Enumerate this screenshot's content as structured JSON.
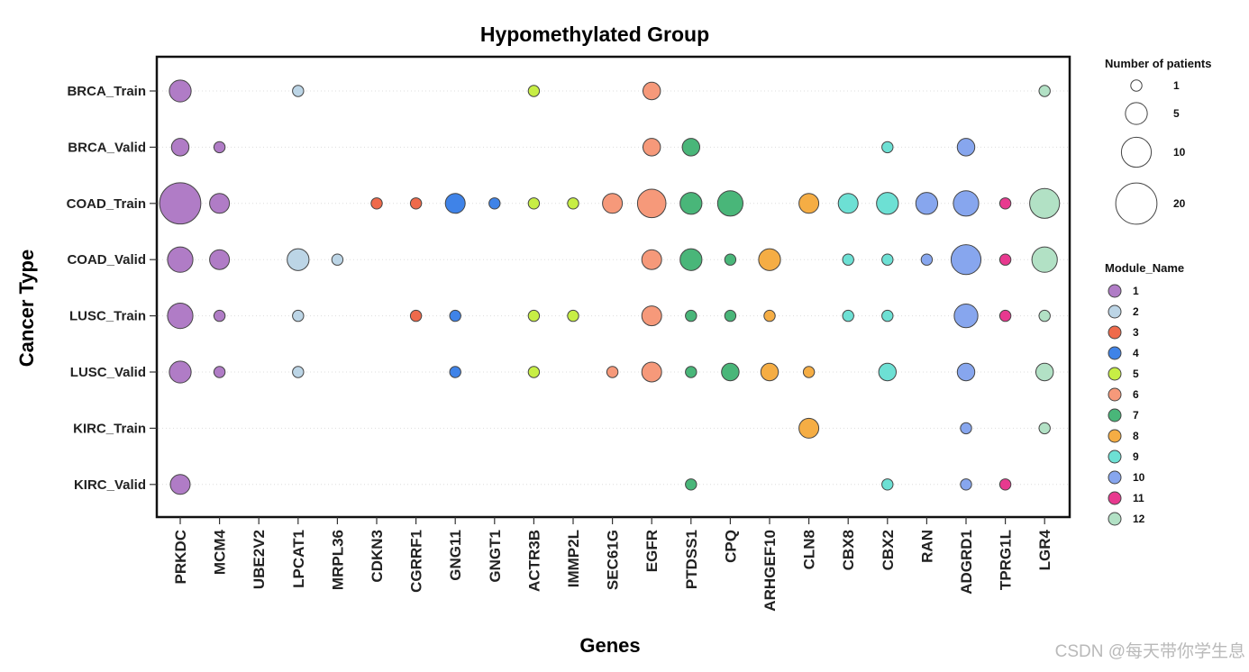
{
  "chart_data": {
    "type": "scatter",
    "title": "Hypomethylated Group",
    "xlabel": "Genes",
    "ylabel": "Cancer Type",
    "genes": [
      "PRKDC",
      "MCM4",
      "UBE2V2",
      "LPCAT1",
      "MRPL36",
      "CDKN3",
      "CGRRF1",
      "GNG11",
      "GNGT1",
      "ACTR3B",
      "IMMP2L",
      "SEC61G",
      "EGFR",
      "PTDSS1",
      "CPQ",
      "ARHGEF10",
      "CLN8",
      "CBX8",
      "CBX2",
      "RAN",
      "ADGRD1",
      "TPRG1L",
      "LGR4"
    ],
    "cancer_types": [
      "BRCA_Train",
      "BRCA_Valid",
      "COAD_Train",
      "COAD_Valid",
      "LUSC_Train",
      "LUSC_Valid",
      "KIRC_Train",
      "KIRC_Valid"
    ],
    "gene_module": {
      "PRKDC": 1,
      "MCM4": 1,
      "UBE2V2": 1,
      "LPCAT1": 2,
      "MRPL36": 2,
      "CDKN3": 3,
      "CGRRF1": 3,
      "GNG11": 4,
      "GNGT1": 4,
      "ACTR3B": 5,
      "IMMP2L": 5,
      "SEC61G": 6,
      "EGFR": 6,
      "PTDSS1": 7,
      "CPQ": 7,
      "ARHGEF10": 8,
      "CLN8": 8,
      "CBX8": 9,
      "CBX2": 9,
      "RAN": 10,
      "ADGRD1": 10,
      "TPRG1L": 11,
      "LGR4": 12
    },
    "points": [
      {
        "cancer": "BRCA_Train",
        "gene": "PRKDC",
        "patients": 5
      },
      {
        "cancer": "BRCA_Train",
        "gene": "LPCAT1",
        "patients": 1
      },
      {
        "cancer": "BRCA_Train",
        "gene": "ACTR3B",
        "patients": 1
      },
      {
        "cancer": "BRCA_Train",
        "gene": "EGFR",
        "patients": 3
      },
      {
        "cancer": "BRCA_Train",
        "gene": "LGR4",
        "patients": 1
      },
      {
        "cancer": "BRCA_Valid",
        "gene": "PRKDC",
        "patients": 3
      },
      {
        "cancer": "BRCA_Valid",
        "gene": "MCM4",
        "patients": 1
      },
      {
        "cancer": "BRCA_Valid",
        "gene": "EGFR",
        "patients": 3
      },
      {
        "cancer": "BRCA_Valid",
        "gene": "PTDSS1",
        "patients": 3
      },
      {
        "cancer": "BRCA_Valid",
        "gene": "CBX2",
        "patients": 1
      },
      {
        "cancer": "BRCA_Valid",
        "gene": "ADGRD1",
        "patients": 3
      },
      {
        "cancer": "COAD_Train",
        "gene": "PRKDC",
        "patients": 20
      },
      {
        "cancer": "COAD_Train",
        "gene": "MCM4",
        "patients": 4
      },
      {
        "cancer": "COAD_Train",
        "gene": "CDKN3",
        "patients": 1
      },
      {
        "cancer": "COAD_Train",
        "gene": "CGRRF1",
        "patients": 1
      },
      {
        "cancer": "COAD_Train",
        "gene": "GNG11",
        "patients": 4
      },
      {
        "cancer": "COAD_Train",
        "gene": "GNGT1",
        "patients": 1
      },
      {
        "cancer": "COAD_Train",
        "gene": "ACTR3B",
        "patients": 1
      },
      {
        "cancer": "COAD_Train",
        "gene": "IMMP2L",
        "patients": 1
      },
      {
        "cancer": "COAD_Train",
        "gene": "SEC61G",
        "patients": 4
      },
      {
        "cancer": "COAD_Train",
        "gene": "EGFR",
        "patients": 9
      },
      {
        "cancer": "COAD_Train",
        "gene": "PTDSS1",
        "patients": 5
      },
      {
        "cancer": "COAD_Train",
        "gene": "CPQ",
        "patients": 7
      },
      {
        "cancer": "COAD_Train",
        "gene": "CLN8",
        "patients": 4
      },
      {
        "cancer": "COAD_Train",
        "gene": "CBX8",
        "patients": 4
      },
      {
        "cancer": "COAD_Train",
        "gene": "CBX2",
        "patients": 5
      },
      {
        "cancer": "COAD_Train",
        "gene": "RAN",
        "patients": 5
      },
      {
        "cancer": "COAD_Train",
        "gene": "ADGRD1",
        "patients": 7
      },
      {
        "cancer": "COAD_Train",
        "gene": "TPRG1L",
        "patients": 1
      },
      {
        "cancer": "COAD_Train",
        "gene": "LGR4",
        "patients": 10
      },
      {
        "cancer": "COAD_Valid",
        "gene": "PRKDC",
        "patients": 7
      },
      {
        "cancer": "COAD_Valid",
        "gene": "MCM4",
        "patients": 4
      },
      {
        "cancer": "COAD_Valid",
        "gene": "LPCAT1",
        "patients": 5
      },
      {
        "cancer": "COAD_Valid",
        "gene": "MRPL36",
        "patients": 1
      },
      {
        "cancer": "COAD_Valid",
        "gene": "EGFR",
        "patients": 4
      },
      {
        "cancer": "COAD_Valid",
        "gene": "PTDSS1",
        "patients": 5
      },
      {
        "cancer": "COAD_Valid",
        "gene": "CPQ",
        "patients": 1
      },
      {
        "cancer": "COAD_Valid",
        "gene": "ARHGEF10",
        "patients": 5
      },
      {
        "cancer": "COAD_Valid",
        "gene": "CBX8",
        "patients": 1
      },
      {
        "cancer": "COAD_Valid",
        "gene": "CBX2",
        "patients": 1
      },
      {
        "cancer": "COAD_Valid",
        "gene": "RAN",
        "patients": 1
      },
      {
        "cancer": "COAD_Valid",
        "gene": "ADGRD1",
        "patients": 10
      },
      {
        "cancer": "COAD_Valid",
        "gene": "TPRG1L",
        "patients": 1
      },
      {
        "cancer": "COAD_Valid",
        "gene": "LGR4",
        "patients": 7
      },
      {
        "cancer": "LUSC_Train",
        "gene": "PRKDC",
        "patients": 7
      },
      {
        "cancer": "LUSC_Train",
        "gene": "MCM4",
        "patients": 1
      },
      {
        "cancer": "LUSC_Train",
        "gene": "LPCAT1",
        "patients": 1
      },
      {
        "cancer": "LUSC_Train",
        "gene": "CGRRF1",
        "patients": 1
      },
      {
        "cancer": "LUSC_Train",
        "gene": "GNG11",
        "patients": 1
      },
      {
        "cancer": "LUSC_Train",
        "gene": "ACTR3B",
        "patients": 1
      },
      {
        "cancer": "LUSC_Train",
        "gene": "IMMP2L",
        "patients": 1
      },
      {
        "cancer": "LUSC_Train",
        "gene": "EGFR",
        "patients": 4
      },
      {
        "cancer": "LUSC_Train",
        "gene": "PTDSS1",
        "patients": 1
      },
      {
        "cancer": "LUSC_Train",
        "gene": "CPQ",
        "patients": 1
      },
      {
        "cancer": "LUSC_Train",
        "gene": "ARHGEF10",
        "patients": 1
      },
      {
        "cancer": "LUSC_Train",
        "gene": "CBX8",
        "patients": 1
      },
      {
        "cancer": "LUSC_Train",
        "gene": "CBX2",
        "patients": 1
      },
      {
        "cancer": "LUSC_Train",
        "gene": "ADGRD1",
        "patients": 6
      },
      {
        "cancer": "LUSC_Train",
        "gene": "TPRG1L",
        "patients": 1
      },
      {
        "cancer": "LUSC_Train",
        "gene": "LGR4",
        "patients": 1
      },
      {
        "cancer": "LUSC_Valid",
        "gene": "PRKDC",
        "patients": 5
      },
      {
        "cancer": "LUSC_Valid",
        "gene": "MCM4",
        "patients": 1
      },
      {
        "cancer": "LUSC_Valid",
        "gene": "LPCAT1",
        "patients": 1
      },
      {
        "cancer": "LUSC_Valid",
        "gene": "GNG11",
        "patients": 1
      },
      {
        "cancer": "LUSC_Valid",
        "gene": "ACTR3B",
        "patients": 1
      },
      {
        "cancer": "LUSC_Valid",
        "gene": "SEC61G",
        "patients": 1
      },
      {
        "cancer": "LUSC_Valid",
        "gene": "EGFR",
        "patients": 4
      },
      {
        "cancer": "LUSC_Valid",
        "gene": "PTDSS1",
        "patients": 1
      },
      {
        "cancer": "LUSC_Valid",
        "gene": "CPQ",
        "patients": 3
      },
      {
        "cancer": "LUSC_Valid",
        "gene": "ARHGEF10",
        "patients": 3
      },
      {
        "cancer": "LUSC_Valid",
        "gene": "CLN8",
        "patients": 1
      },
      {
        "cancer": "LUSC_Valid",
        "gene": "CBX2",
        "patients": 3
      },
      {
        "cancer": "LUSC_Valid",
        "gene": "ADGRD1",
        "patients": 3
      },
      {
        "cancer": "LUSC_Valid",
        "gene": "LGR4",
        "patients": 3
      },
      {
        "cancer": "KIRC_Train",
        "gene": "CLN8",
        "patients": 4
      },
      {
        "cancer": "KIRC_Train",
        "gene": "ADGRD1",
        "patients": 1
      },
      {
        "cancer": "KIRC_Train",
        "gene": "LGR4",
        "patients": 1
      },
      {
        "cancer": "KIRC_Valid",
        "gene": "PRKDC",
        "patients": 4
      },
      {
        "cancer": "KIRC_Valid",
        "gene": "PTDSS1",
        "patients": 1
      },
      {
        "cancer": "KIRC_Valid",
        "gene": "CBX2",
        "patients": 1
      },
      {
        "cancer": "KIRC_Valid",
        "gene": "ADGRD1",
        "patients": 1
      },
      {
        "cancer": "KIRC_Valid",
        "gene": "TPRG1L",
        "patients": 1
      }
    ],
    "legend_size": {
      "title": "Number of patients",
      "values": [
        1,
        5,
        10,
        20
      ]
    },
    "legend_color": {
      "title": "Module_Name",
      "entries": [
        {
          "label": "1",
          "color": "#b07cc6"
        },
        {
          "label": "2",
          "color": "#bcd5e6"
        },
        {
          "label": "3",
          "color": "#ef6a4b"
        },
        {
          "label": "4",
          "color": "#3f83e8"
        },
        {
          "label": "5",
          "color": "#c7ee45"
        },
        {
          "label": "6",
          "color": "#f6997a"
        },
        {
          "label": "7",
          "color": "#49b679"
        },
        {
          "label": "8",
          "color": "#f5ad44"
        },
        {
          "label": "9",
          "color": "#6de0d4"
        },
        {
          "label": "10",
          "color": "#87a6ee"
        },
        {
          "label": "11",
          "color": "#e8398f"
        },
        {
          "label": "12",
          "color": "#b2e1c5"
        }
      ]
    },
    "grid": "horizontal dotted",
    "legend_position": "right"
  },
  "watermark": "CSDN @每天带你学生息"
}
